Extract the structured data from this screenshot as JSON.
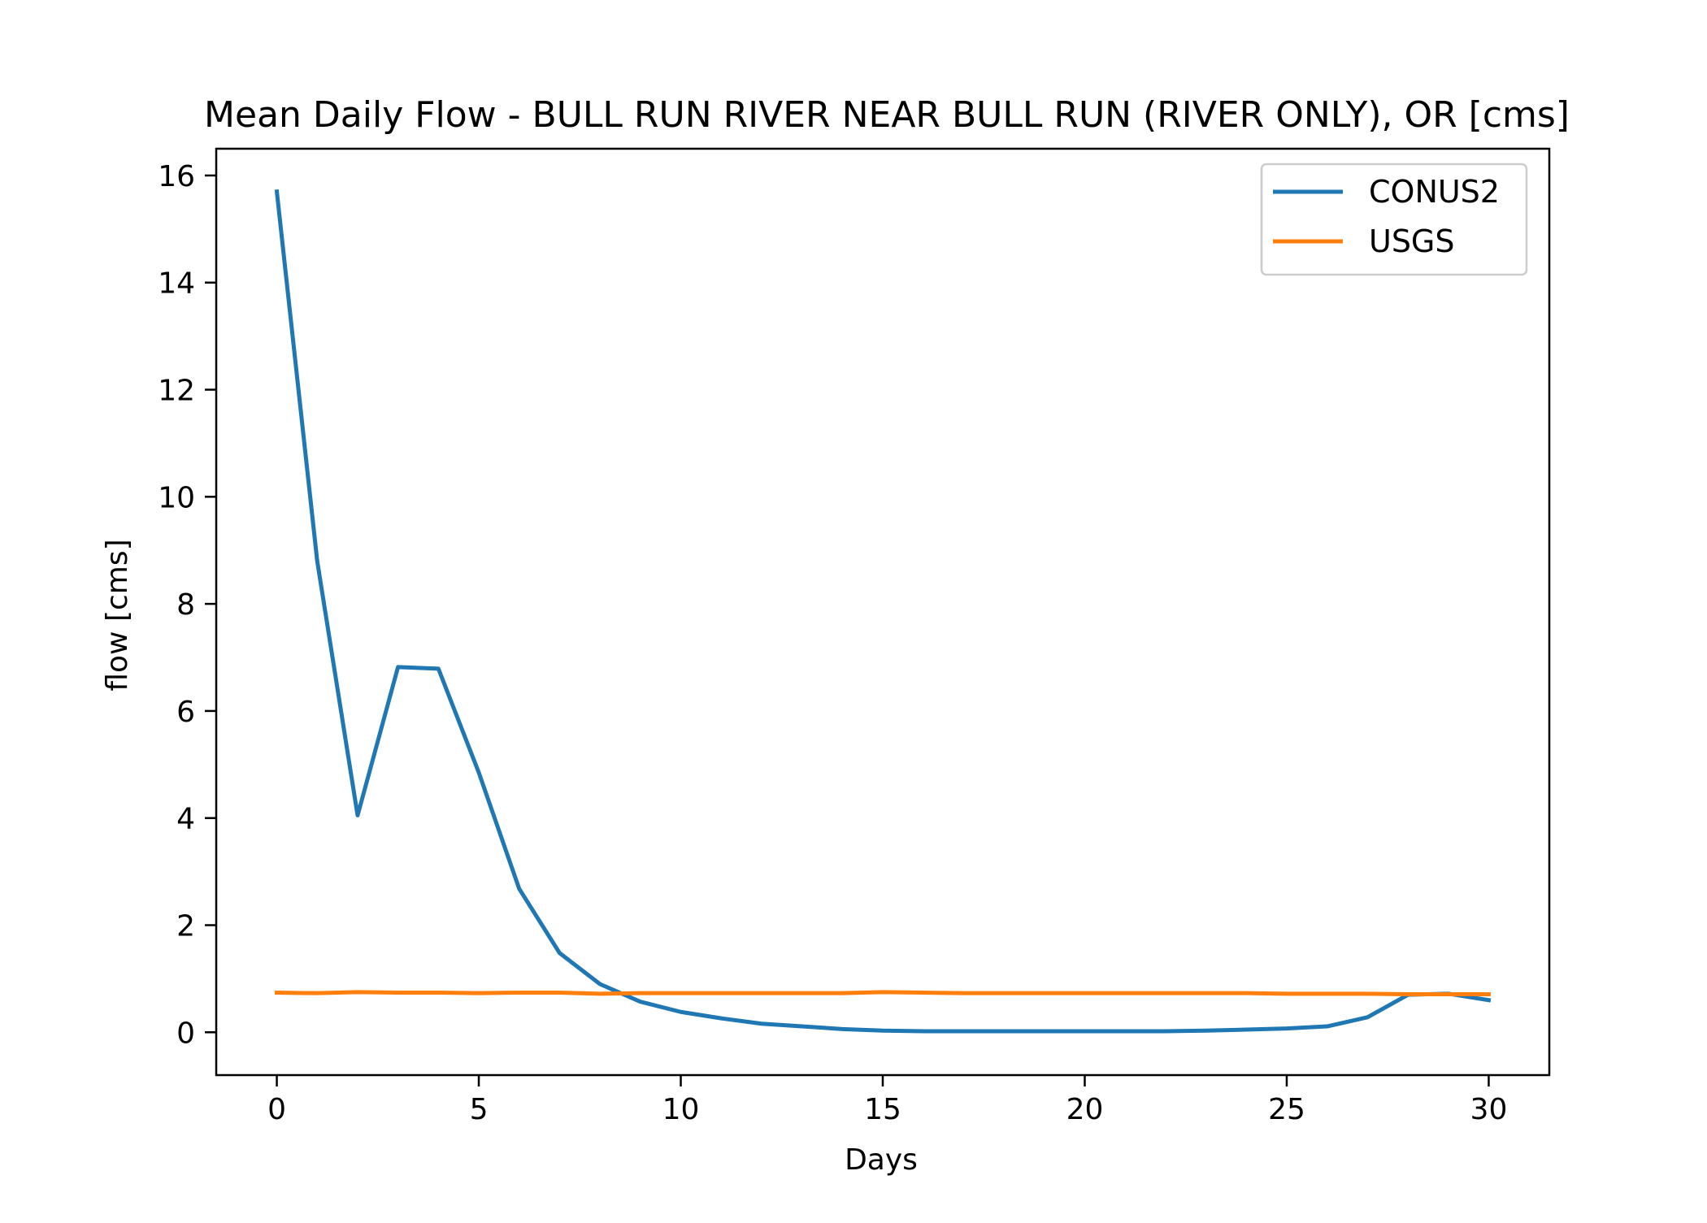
{
  "chart_data": {
    "type": "line",
    "title": "Mean Daily Flow - BULL RUN RIVER NEAR BULL RUN (RIVER ONLY), OR [cms]",
    "xlabel": "Days",
    "ylabel": "flow [cms]",
    "xlim": [
      -1.5,
      31.5
    ],
    "ylim": [
      -0.8,
      16.5
    ],
    "xticks": [
      0,
      5,
      10,
      15,
      20,
      25,
      30
    ],
    "yticks": [
      0,
      2,
      4,
      6,
      8,
      10,
      12,
      14,
      16
    ],
    "grid": false,
    "legend_position": "top-right",
    "x": [
      0,
      1,
      2,
      3,
      4,
      5,
      6,
      7,
      8,
      9,
      10,
      11,
      12,
      13,
      14,
      15,
      16,
      17,
      18,
      19,
      20,
      21,
      22,
      23,
      24,
      25,
      26,
      27,
      28,
      29,
      30
    ],
    "series": [
      {
        "name": "CONUS2",
        "color": "#1f77b4",
        "values": [
          15.7,
          8.8,
          4.05,
          6.82,
          6.79,
          4.85,
          2.68,
          1.48,
          0.9,
          0.57,
          0.38,
          0.26,
          0.16,
          0.11,
          0.06,
          0.03,
          0.02,
          0.02,
          0.02,
          0.02,
          0.02,
          0.02,
          0.02,
          0.03,
          0.05,
          0.07,
          0.11,
          0.28,
          0.7,
          0.72,
          0.6
        ]
      },
      {
        "name": "USGS",
        "color": "#ff7f0e",
        "values": [
          0.74,
          0.73,
          0.75,
          0.74,
          0.74,
          0.73,
          0.74,
          0.74,
          0.72,
          0.73,
          0.73,
          0.73,
          0.73,
          0.73,
          0.73,
          0.75,
          0.74,
          0.73,
          0.73,
          0.73,
          0.73,
          0.73,
          0.73,
          0.73,
          0.73,
          0.72,
          0.72,
          0.72,
          0.71,
          0.71,
          0.71
        ]
      }
    ]
  }
}
